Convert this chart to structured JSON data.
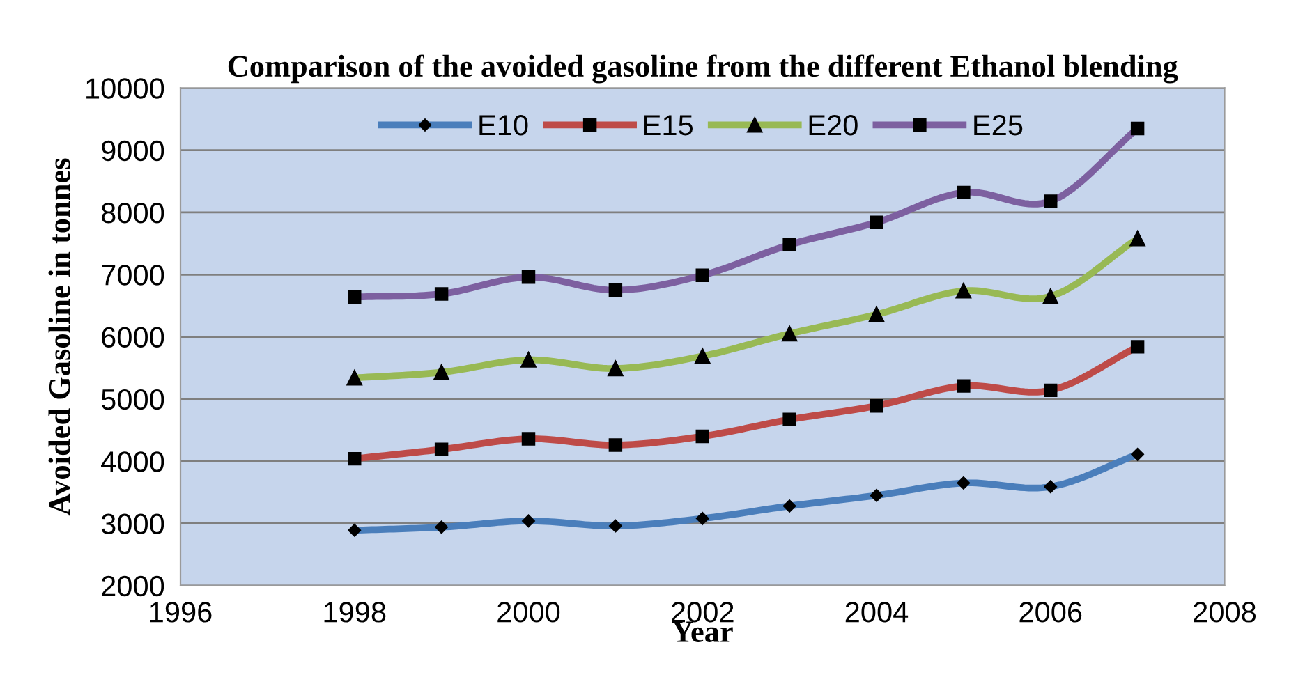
{
  "chart_data": {
    "type": "line",
    "title": "Comparison of the avoided gasoline from the different Ethanol blending",
    "xlabel": "Year",
    "ylabel": "Avoided Gasoline in tonnes",
    "x": [
      1998,
      1999,
      2000,
      2001,
      2002,
      2003,
      2004,
      2005,
      2006,
      2007
    ],
    "series": [
      {
        "name": "E10",
        "color": "#4a7ebb",
        "marker": "diamond",
        "values": [
          2890,
          2940,
          3040,
          2960,
          3080,
          3280,
          3450,
          3650,
          3590,
          4110
        ]
      },
      {
        "name": "E15",
        "color": "#be4b48",
        "marker": "square",
        "values": [
          4040,
          4190,
          4360,
          4260,
          4400,
          4670,
          4890,
          5210,
          5140,
          5840
        ]
      },
      {
        "name": "E20",
        "color": "#98b954",
        "marker": "triangle",
        "values": [
          5340,
          5430,
          5630,
          5490,
          5690,
          6050,
          6360,
          6740,
          6650,
          7580
        ]
      },
      {
        "name": "E25",
        "color": "#7d60a0",
        "marker": "square",
        "values": [
          6640,
          6690,
          6960,
          6750,
          6990,
          7480,
          7840,
          8320,
          8180,
          9350
        ]
      }
    ],
    "xlim": [
      1996,
      2008
    ],
    "xticks": [
      1996,
      1998,
      2000,
      2002,
      2004,
      2006,
      2008
    ],
    "ylim": [
      2000,
      10000
    ],
    "yticks": [
      2000,
      3000,
      4000,
      5000,
      6000,
      7000,
      8000,
      9000,
      10000
    ],
    "grid": "y",
    "legend": "top",
    "line_style": "solid"
  }
}
